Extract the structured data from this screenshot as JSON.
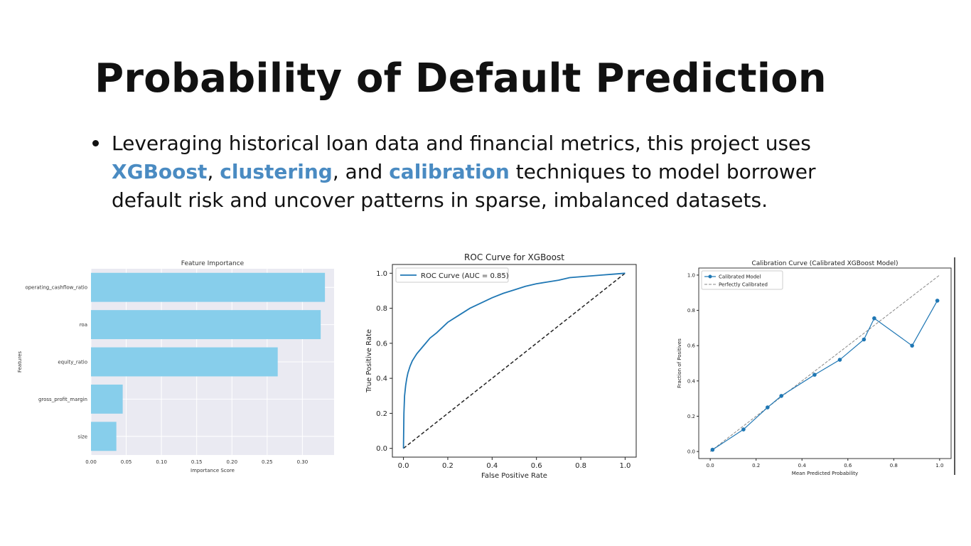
{
  "slide": {
    "title": "Probability of Default Prediction",
    "bullet": {
      "part1": "Leveraging historical loan data and financial metrics, this project uses ",
      "kw1": "XGBoost",
      "sep1": ", ",
      "kw2": "clustering",
      "sep2": ", and ",
      "kw3": "calibration",
      "part2": " techniques to model borrower default risk and uncover patterns in sparse, imbalanced datasets."
    },
    "colors": {
      "keyword": "#4a8bc2",
      "bar": "#87ceeb",
      "line": "#1f77b4",
      "plot_bg": "#eaeaf2"
    }
  },
  "chart_data": [
    {
      "type": "bar",
      "orientation": "horizontal",
      "title": "Feature Importance",
      "xlabel": "Importance Score",
      "ylabel": "Features",
      "categories": [
        "operating_cashflow_ratio",
        "roa",
        "equity_ratio",
        "gross_profit_margin",
        "size"
      ],
      "values": [
        0.332,
        0.326,
        0.265,
        0.045,
        0.036
      ],
      "xlim": [
        0,
        0.345
      ],
      "xticks": [
        "0.00",
        "0.05",
        "0.10",
        "0.15",
        "0.20",
        "0.25",
        "0.30"
      ],
      "grid": true
    },
    {
      "type": "line",
      "title": "ROC Curve for XGBoost",
      "xlabel": "False Positive Rate",
      "ylabel": "True Positive Rate",
      "xlim": [
        -0.05,
        1.05
      ],
      "ylim": [
        -0.05,
        1.05
      ],
      "xticks": [
        "0.0",
        "0.2",
        "0.4",
        "0.6",
        "0.8",
        "1.0"
      ],
      "yticks": [
        "0.0",
        "0.2",
        "0.4",
        "0.6",
        "0.8",
        "1.0"
      ],
      "legend": "upper-left",
      "series": [
        {
          "name": "ROC Curve (AUC = 0.85)",
          "x": [
            0,
            0.002,
            0.005,
            0.01,
            0.015,
            0.02,
            0.03,
            0.04,
            0.05,
            0.06,
            0.08,
            0.1,
            0.12,
            0.15,
            0.2,
            0.25,
            0.3,
            0.35,
            0.4,
            0.45,
            0.5,
            0.55,
            0.6,
            0.65,
            0.7,
            0.75,
            0.8,
            0.85,
            0.9,
            0.95,
            1.0
          ],
          "y": [
            0,
            0.2,
            0.3,
            0.36,
            0.4,
            0.43,
            0.47,
            0.5,
            0.52,
            0.54,
            0.57,
            0.6,
            0.63,
            0.66,
            0.72,
            0.76,
            0.8,
            0.83,
            0.86,
            0.885,
            0.905,
            0.925,
            0.94,
            0.95,
            0.96,
            0.975,
            0.98,
            0.985,
            0.99,
            0.995,
            1.0
          ]
        },
        {
          "x": [
            0,
            1
          ],
          "y": [
            0,
            1
          ]
        }
      ]
    },
    {
      "type": "line",
      "title": "Calibration Curve (Calibrated XGBoost Model)",
      "xlabel": "Mean Predicted Probability",
      "ylabel": "Fraction of Positives",
      "xlim": [
        -0.05,
        1.05
      ],
      "ylim": [
        -0.04,
        1.04
      ],
      "xticks": [
        "0.0",
        "0.2",
        "0.4",
        "0.6",
        "0.8",
        "1.0"
      ],
      "yticks": [
        "0.0",
        "0.2",
        "0.4",
        "0.6",
        "0.8",
        "1.0"
      ],
      "legend": "upper-left",
      "series": [
        {
          "name": "Calibrated Model",
          "x": [
            0.01,
            0.145,
            0.25,
            0.31,
            0.455,
            0.565,
            0.67,
            0.715,
            0.88,
            0.99
          ],
          "y": [
            0.01,
            0.125,
            0.25,
            0.315,
            0.435,
            0.52,
            0.635,
            0.755,
            0.6,
            0.855
          ]
        },
        {
          "name": "Perfectly Calibrated",
          "x": [
            0,
            1
          ],
          "y": [
            0,
            1
          ]
        }
      ]
    }
  ]
}
